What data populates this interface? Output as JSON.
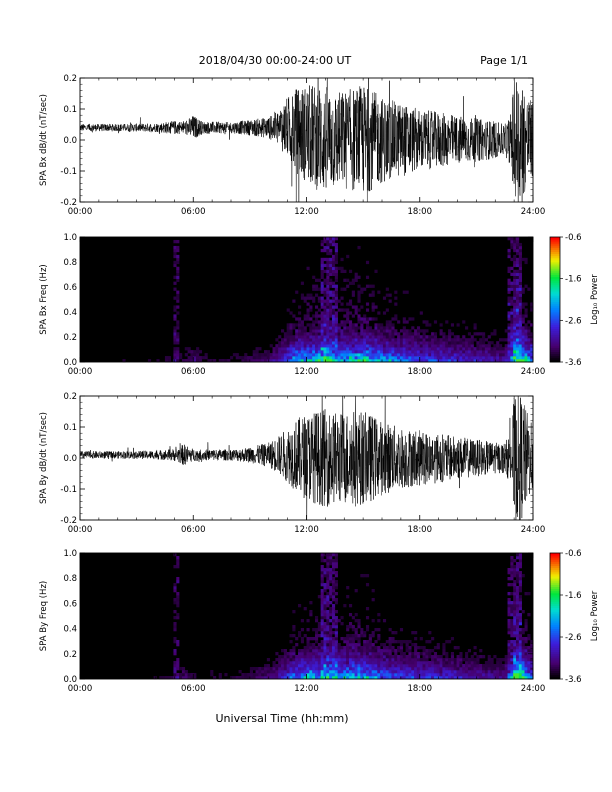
{
  "header": {
    "title": "2018/04/30  00:00-24:00 UT",
    "page": "Page 1/1"
  },
  "xlabel": "Universal Time (hh:mm)",
  "chart_data": [
    {
      "type": "line",
      "ylabel": "SPA Bx dB/dt (nT/sec)",
      "xlim": [
        "00:00",
        "24:00"
      ],
      "ylim": [
        -0.2,
        0.2
      ],
      "xticks": [
        "00:00",
        "06:00",
        "12:00",
        "18:00",
        "24:00"
      ],
      "yticks": [
        "-0.2",
        "-0.1",
        "0.0",
        "0.1",
        "0.2"
      ],
      "envelope": {
        "x_hours": [
          0,
          2,
          4,
          5,
          5.5,
          6,
          6.5,
          8,
          9,
          10,
          10.5,
          11,
          11.5,
          12,
          12.5,
          13,
          13.5,
          14,
          14.5,
          15,
          15.5,
          16,
          17,
          18,
          19,
          20,
          21,
          22,
          22.5,
          22.8,
          23,
          23.3,
          23.7,
          24
        ],
        "amplitude": [
          0.012,
          0.012,
          0.014,
          0.022,
          0.02,
          0.04,
          0.02,
          0.018,
          0.025,
          0.035,
          0.06,
          0.1,
          0.14,
          0.16,
          0.17,
          0.18,
          0.16,
          0.16,
          0.17,
          0.18,
          0.16,
          0.14,
          0.12,
          0.1,
          0.09,
          0.08,
          0.07,
          0.06,
          0.05,
          0.08,
          0.2,
          0.22,
          0.15,
          0.12
        ],
        "baseline": 0.04
      }
    },
    {
      "type": "heatmap",
      "ylabel": "SPA Bx Freq (Hz)",
      "ylim": [
        0.0,
        1.0
      ],
      "xticks": [
        "00:00",
        "06:00",
        "12:00",
        "18:00",
        "24:00"
      ],
      "yticks": [
        "0.0",
        "0.2",
        "0.4",
        "0.6",
        "0.8",
        "1.0"
      ],
      "colorbar": {
        "label": "Log₁₀ Power",
        "ticks": [
          "-0.6",
          "-1.6",
          "-2.6",
          "-3.6"
        ],
        "range": [
          -3.6,
          -0.6
        ]
      }
    },
    {
      "type": "line",
      "ylabel": "SPA By dB/dt (nT/sec)",
      "xlim": [
        "00:00",
        "24:00"
      ],
      "ylim": [
        -0.2,
        0.2
      ],
      "xticks": [
        "00:00",
        "06:00",
        "12:00",
        "18:00",
        "24:00"
      ],
      "yticks": [
        "-0.2",
        "-0.1",
        "0.0",
        "0.1",
        "0.2"
      ],
      "envelope": {
        "x_hours": [
          0,
          2,
          4,
          5,
          5.5,
          6,
          6.5,
          8,
          9,
          10,
          10.5,
          11,
          11.5,
          12,
          12.5,
          13,
          13.5,
          14,
          14.5,
          15,
          15.5,
          16,
          17,
          18,
          19,
          20,
          21,
          22,
          22.5,
          22.8,
          23,
          23.3,
          23.7,
          24
        ],
        "amplitude": [
          0.012,
          0.012,
          0.014,
          0.02,
          0.035,
          0.02,
          0.018,
          0.018,
          0.025,
          0.04,
          0.06,
          0.09,
          0.12,
          0.14,
          0.15,
          0.16,
          0.15,
          0.15,
          0.16,
          0.15,
          0.14,
          0.12,
          0.1,
          0.09,
          0.08,
          0.07,
          0.06,
          0.05,
          0.05,
          0.08,
          0.2,
          0.22,
          0.15,
          0.1
        ],
        "baseline": 0.01
      }
    },
    {
      "type": "heatmap",
      "ylabel": "SPA By Freq (Hz)",
      "ylim": [
        0.0,
        1.0
      ],
      "xticks": [
        "00:00",
        "06:00",
        "12:00",
        "18:00",
        "24:00"
      ],
      "yticks": [
        "0.0",
        "0.2",
        "0.4",
        "0.6",
        "0.8",
        "1.0"
      ],
      "colorbar": {
        "label": "Log₁₀ Power",
        "ticks": [
          "-0.6",
          "-1.6",
          "-2.6",
          "-3.6"
        ],
        "range": [
          -3.6,
          -0.6
        ]
      }
    }
  ]
}
